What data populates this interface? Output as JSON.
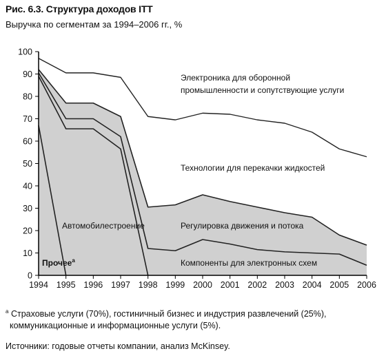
{
  "figure_title": "Рис. 6.3. Структура доходов ITT",
  "figure_subtitle": "Выручка по сегментам за 1994–2006 гг., %",
  "footnote": {
    "marker": "a",
    "line1": "Страховые услуги (70%), гостиничный бизнес и индустрия развлечений (25%),",
    "line2": "коммуникационные и информационные услуги (5%)."
  },
  "source": "Источники: годовые отчеты компании, анализ McKinsey.",
  "colors": {
    "shade": "#d0d0d0",
    "line": "#222222",
    "axis": "#000000"
  },
  "chart_data": {
    "type": "area",
    "title": "Структура доходов ITT",
    "ylabel": "%",
    "ylim": [
      0,
      100
    ],
    "yticks": [
      0,
      10,
      20,
      30,
      40,
      50,
      60,
      70,
      80,
      90,
      100
    ],
    "x": [
      1994,
      1995,
      1996,
      1997,
      1998,
      1999,
      2000,
      2001,
      2002,
      2003,
      2004,
      2005,
      2006
    ],
    "boundaries": [
      {
        "id": "other_top",
        "points": [
          [
            1994,
            67
          ],
          [
            1995,
            0
          ]
        ]
      },
      {
        "id": "auto_top",
        "points": [
          [
            1994,
            89
          ],
          [
            1995,
            65.5
          ],
          [
            1996,
            65.5
          ],
          [
            1997,
            56.5
          ],
          [
            1998,
            0
          ]
        ]
      },
      {
        "id": "components_top",
        "points": [
          [
            1994,
            90.5
          ],
          [
            1995,
            70
          ],
          [
            1996,
            70
          ],
          [
            1997,
            62
          ],
          [
            1998,
            12
          ],
          [
            1999,
            11
          ],
          [
            2000,
            16
          ],
          [
            2001,
            14
          ],
          [
            2002,
            11.5
          ],
          [
            2003,
            10.5
          ],
          [
            2004,
            10
          ],
          [
            2005,
            9.5
          ],
          [
            2006,
            4.5
          ]
        ]
      },
      {
        "id": "traffic_top",
        "points": [
          [
            1994,
            92
          ],
          [
            1995,
            77
          ],
          [
            1996,
            77
          ],
          [
            1997,
            71
          ],
          [
            1998,
            30.5
          ],
          [
            1999,
            31.5
          ],
          [
            2000,
            36
          ],
          [
            2001,
            33
          ],
          [
            2002,
            30.5
          ],
          [
            2003,
            28
          ],
          [
            2004,
            26
          ],
          [
            2005,
            18
          ],
          [
            2006,
            13.5
          ]
        ]
      },
      {
        "id": "fluid_top",
        "points": [
          [
            1994,
            97
          ],
          [
            1995,
            90.5
          ],
          [
            1996,
            90.5
          ],
          [
            1997,
            88.5
          ],
          [
            1998,
            71
          ],
          [
            1999,
            69.5
          ],
          [
            2000,
            72.5
          ],
          [
            2001,
            72
          ],
          [
            2002,
            69.5
          ],
          [
            2003,
            68
          ],
          [
            2004,
            64
          ],
          [
            2005,
            56.5
          ],
          [
            2006,
            53
          ]
        ]
      }
    ],
    "segment_labels": {
      "defense": "Электроника для оборонной промышленности и сопутствующие услуги",
      "defense_line1": "Электроника для оборонной",
      "defense_line2": "промышленности и сопутствующие услуги",
      "fluid": "Технологии для перекачки жидкостей",
      "traffic": "Регулировка движения и потока",
      "auto": "Автомобилестроение",
      "components": "Компоненты для электронных схем",
      "other": "Прочее",
      "other_marker": "а"
    }
  }
}
